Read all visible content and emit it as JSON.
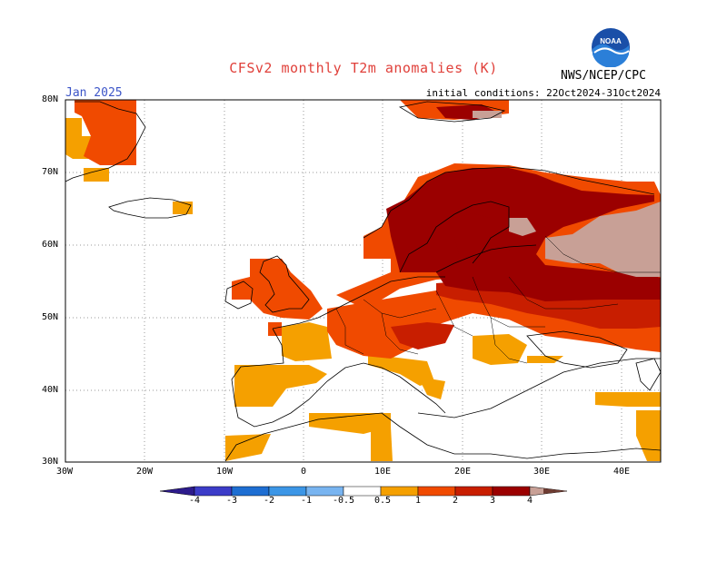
{
  "header": {
    "title": "CFSv2 monthly T2m anomalies (K)",
    "month": "Jan 2025",
    "initial_conditions": "initial conditions: 22Oct2024-31Oct2024",
    "agency": "NWS/NCEP/CPC",
    "logo_text": "NOAA"
  },
  "axes": {
    "lat_labels": [
      "80N",
      "70N",
      "60N",
      "50N",
      "40N",
      "30N"
    ],
    "lon_labels": [
      "30W",
      "20W",
      "10W",
      "0",
      "10E",
      "20E",
      "30E",
      "40E"
    ]
  },
  "legend": {
    "labels": [
      "-4",
      "-3",
      "-2",
      "-1",
      "-0.5",
      "0.5",
      "1",
      "2",
      "3",
      "4"
    ],
    "colors": {
      "lt_-4": "#2d1b8c",
      "-4_-3": "#3c3cc8",
      "-3_-2": "#1e6ed2",
      "-2_-1": "#3c96e6",
      "-1_-0.5": "#78b4f0",
      "-0.5_0.5": "#ffffff",
      "0.5_1": "#f5a000",
      "1_2": "#f04a00",
      "2_3": "#c81e00",
      "3_4": "#9b0000",
      "gt_4": "#c8a096",
      "gt_4_dark": "#6e3c32"
    }
  },
  "map_data": {
    "region": "Europe, 30W–45E, 30N–80N",
    "anomaly_colors_legend_order": [
      "0.5-1",
      "1-2",
      "2-3",
      "3-4",
      ">4"
    ]
  }
}
